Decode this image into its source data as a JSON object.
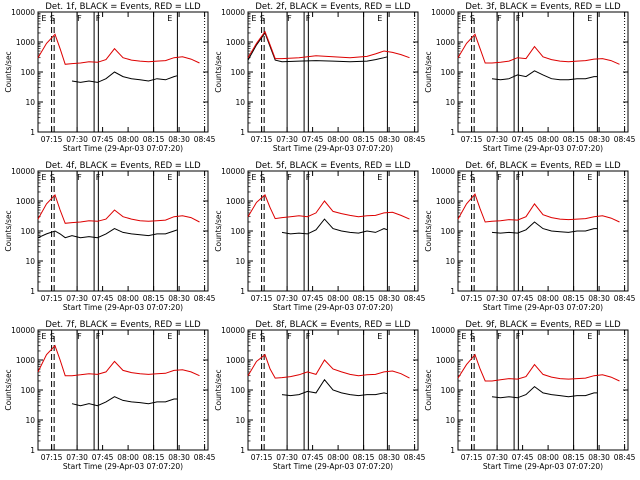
{
  "colors": {
    "events": "#000000",
    "lld": "#dd0000",
    "axis": "#000000",
    "background": "#ffffff"
  },
  "chart_data": [
    {
      "type": "line",
      "scale": "log",
      "title": "Det. 1f, BLACK = Events, RED = LLD",
      "xlabel": "Start Time (29-Apr-03 07:07:20)",
      "ylabel": "Counts/sec",
      "ylim": [
        1,
        10000
      ],
      "xticks": [
        "07:15",
        "07:30",
        "07:45",
        "08:00",
        "08:15",
        "08:30",
        "08:45"
      ],
      "yticks": [
        "1",
        "10",
        "100",
        "1000",
        "10000"
      ],
      "markers": [
        "E",
        "S",
        "F",
        "F",
        "E"
      ],
      "series": [
        {
          "name": "BLACK = Events",
          "x": [
            0,
            5,
            10,
            13,
            16,
            20,
            25,
            30,
            35,
            40,
            45,
            50,
            55,
            60,
            65,
            70,
            75,
            80,
            82
          ],
          "y": [
            null,
            null,
            null,
            null,
            null,
            50,
            45,
            50,
            45,
            60,
            100,
            70,
            60,
            55,
            50,
            60,
            55,
            70,
            75
          ]
        },
        {
          "name": "RED = LLD",
          "x": [
            0,
            5,
            10,
            13,
            16,
            20,
            25,
            30,
            35,
            40,
            45,
            50,
            55,
            60,
            65,
            70,
            75,
            80,
            85,
            90,
            95
          ],
          "y": [
            300,
            900,
            1800,
            600,
            180,
            190,
            200,
            220,
            210,
            260,
            600,
            300,
            250,
            230,
            220,
            230,
            240,
            300,
            320,
            270,
            200
          ]
        }
      ]
    },
    {
      "type": "line",
      "scale": "log",
      "title": "Det. 2f, BLACK = Events, RED = LLD",
      "xlabel": "Start Time (29-Apr-03 07:07:20)",
      "ylabel": "Counts/sec",
      "ylim": [
        1,
        10000
      ],
      "xticks": [
        "07:15",
        "07:30",
        "07:45",
        "08:00",
        "08:15",
        "08:30",
        "08:45"
      ],
      "yticks": [
        "1",
        "10",
        "100",
        "1000",
        "10000"
      ],
      "markers": [
        "E",
        "S",
        "F",
        "F",
        "E"
      ],
      "series": [
        {
          "name": "BLACK = Events",
          "x": [
            0,
            5,
            10,
            13,
            16,
            20,
            30,
            40,
            50,
            60,
            70,
            75,
            80,
            82
          ],
          "y": [
            250,
            800,
            2000,
            700,
            250,
            220,
            230,
            240,
            230,
            220,
            230,
            260,
            300,
            320
          ]
        },
        {
          "name": "RED = LLD",
          "x": [
            0,
            5,
            10,
            13,
            16,
            20,
            30,
            40,
            50,
            60,
            70,
            75,
            80,
            85,
            90,
            95
          ],
          "y": [
            300,
            900,
            2200,
            800,
            280,
            280,
            300,
            350,
            320,
            300,
            330,
            400,
            500,
            450,
            380,
            300
          ]
        }
      ]
    },
    {
      "type": "line",
      "scale": "log",
      "title": "Det. 3f, BLACK = Events, RED = LLD",
      "xlabel": "Start Time (29-Apr-03 07:07:20)",
      "ylabel": "Counts/sec",
      "ylim": [
        1,
        10000
      ],
      "xticks": [
        "07:15",
        "07:30",
        "07:45",
        "08:00",
        "08:15",
        "08:30",
        "08:45"
      ],
      "yticks": [
        "1",
        "10",
        "100",
        "1000",
        "10000"
      ],
      "markers": [
        "E",
        "S",
        "F",
        "F",
        "E"
      ],
      "series": [
        {
          "name": "BLACK = Events",
          "x": [
            0,
            5,
            10,
            13,
            16,
            20,
            25,
            30,
            35,
            40,
            45,
            50,
            55,
            60,
            65,
            70,
            75,
            80,
            82
          ],
          "y": [
            null,
            null,
            null,
            null,
            null,
            60,
            55,
            60,
            80,
            70,
            110,
            80,
            60,
            55,
            55,
            60,
            60,
            70,
            70
          ]
        },
        {
          "name": "RED = LLD",
          "x": [
            0,
            5,
            10,
            13,
            16,
            20,
            25,
            30,
            35,
            40,
            45,
            50,
            55,
            60,
            65,
            70,
            75,
            80,
            85,
            90,
            95
          ],
          "y": [
            300,
            900,
            1800,
            600,
            200,
            200,
            210,
            230,
            300,
            280,
            700,
            320,
            260,
            230,
            220,
            230,
            240,
            270,
            280,
            240,
            180
          ]
        }
      ]
    },
    {
      "type": "line",
      "scale": "log",
      "title": "Det. 4f, BLACK = Events, RED = LLD",
      "xlabel": "Start Time (29-Apr-03 07:07:20)",
      "ylabel": "Counts/sec",
      "ylim": [
        1,
        10000
      ],
      "xticks": [
        "07:15",
        "07:30",
        "07:45",
        "08:00",
        "08:15",
        "08:30",
        "08:45"
      ],
      "yticks": [
        "1",
        "10",
        "100",
        "1000",
        "10000"
      ],
      "markers": [
        "E",
        "S",
        "F",
        "F",
        "E"
      ],
      "series": [
        {
          "name": "BLACK = Events",
          "x": [
            0,
            5,
            10,
            13,
            16,
            20,
            25,
            30,
            35,
            40,
            45,
            50,
            55,
            60,
            65,
            70,
            75,
            80,
            82
          ],
          "y": [
            60,
            80,
            100,
            80,
            60,
            70,
            60,
            65,
            60,
            80,
            120,
            90,
            80,
            75,
            70,
            80,
            80,
            100,
            110
          ]
        },
        {
          "name": "RED = LLD",
          "x": [
            0,
            5,
            10,
            13,
            16,
            20,
            25,
            30,
            35,
            40,
            45,
            50,
            55,
            60,
            65,
            70,
            75,
            80,
            85,
            90,
            95
          ],
          "y": [
            250,
            800,
            1600,
            500,
            180,
            190,
            200,
            220,
            210,
            250,
            500,
            300,
            250,
            220,
            210,
            220,
            230,
            300,
            320,
            280,
            200
          ]
        }
      ]
    },
    {
      "type": "line",
      "scale": "log",
      "title": "Det. 5f, BLACK = Events, RED = LLD",
      "xlabel": "Start Time (29-Apr-03 07:07:20)",
      "ylabel": "Counts/sec",
      "ylim": [
        1,
        10000
      ],
      "xticks": [
        "07:15",
        "07:30",
        "07:45",
        "08:00",
        "08:15",
        "08:30",
        "08:45"
      ],
      "yticks": [
        "1",
        "10",
        "100",
        "1000",
        "10000"
      ],
      "markers": [
        "E",
        "S",
        "F",
        "F",
        "E"
      ],
      "series": [
        {
          "name": "BLACK = Events",
          "x": [
            0,
            5,
            10,
            13,
            16,
            20,
            25,
            30,
            35,
            40,
            45,
            50,
            55,
            60,
            65,
            70,
            75,
            80,
            82
          ],
          "y": [
            null,
            null,
            null,
            null,
            null,
            90,
            80,
            85,
            80,
            110,
            250,
            120,
            100,
            90,
            85,
            100,
            90,
            120,
            110
          ]
        },
        {
          "name": "RED = LLD",
          "x": [
            0,
            5,
            10,
            13,
            16,
            20,
            25,
            30,
            35,
            40,
            45,
            50,
            55,
            60,
            65,
            70,
            75,
            80,
            85,
            90,
            95
          ],
          "y": [
            300,
            900,
            1600,
            600,
            260,
            280,
            300,
            320,
            300,
            400,
            1000,
            450,
            380,
            330,
            300,
            320,
            330,
            400,
            420,
            330,
            250
          ]
        }
      ]
    },
    {
      "type": "line",
      "scale": "log",
      "title": "Det. 6f, BLACK = Events, RED = LLD",
      "xlabel": "Start Time (29-Apr-03 07:07:20)",
      "ylabel": "Counts/sec",
      "ylim": [
        1,
        10000
      ],
      "xticks": [
        "07:15",
        "07:30",
        "07:45",
        "08:00",
        "08:15",
        "08:30",
        "08:45"
      ],
      "yticks": [
        "1",
        "10",
        "100",
        "1000",
        "10000"
      ],
      "markers": [
        "E",
        "S",
        "F",
        "F",
        "E"
      ],
      "series": [
        {
          "name": "BLACK = Events",
          "x": [
            0,
            5,
            10,
            13,
            16,
            20,
            25,
            30,
            35,
            40,
            45,
            50,
            55,
            60,
            65,
            70,
            75,
            80,
            82
          ],
          "y": [
            null,
            null,
            null,
            null,
            null,
            90,
            85,
            90,
            85,
            110,
            200,
            120,
            100,
            95,
            90,
            100,
            100,
            120,
            120
          ]
        },
        {
          "name": "RED = LLD",
          "x": [
            0,
            5,
            10,
            13,
            16,
            20,
            25,
            30,
            35,
            40,
            45,
            50,
            55,
            60,
            65,
            70,
            75,
            80,
            85,
            90,
            95
          ],
          "y": [
            250,
            800,
            1700,
            550,
            200,
            210,
            220,
            240,
            230,
            300,
            800,
            350,
            280,
            250,
            240,
            250,
            260,
            300,
            320,
            270,
            200
          ]
        }
      ]
    },
    {
      "type": "line",
      "scale": "log",
      "title": "Det. 7f, BLACK = Events, RED = LLD",
      "xlabel": "Start Time (29-Apr-03 07:07:20)",
      "ylabel": "Counts/sec",
      "ylim": [
        1,
        10000
      ],
      "xticks": [
        "07:15",
        "07:30",
        "07:45",
        "08:00",
        "08:15",
        "08:30",
        "08:45"
      ],
      "yticks": [
        "1",
        "10",
        "100",
        "1000",
        "10000"
      ],
      "markers": [
        "E",
        "S",
        "F",
        "F",
        "E"
      ],
      "series": [
        {
          "name": "BLACK = Events",
          "x": [
            0,
            5,
            10,
            13,
            16,
            20,
            25,
            30,
            35,
            40,
            45,
            50,
            55,
            60,
            65,
            70,
            75,
            80,
            82
          ],
          "y": [
            null,
            null,
            null,
            null,
            null,
            35,
            30,
            35,
            30,
            40,
            60,
            45,
            40,
            38,
            35,
            40,
            40,
            50,
            50
          ]
        },
        {
          "name": "RED = LLD",
          "x": [
            0,
            5,
            10,
            13,
            16,
            20,
            25,
            30,
            35,
            40,
            45,
            50,
            55,
            60,
            65,
            70,
            75,
            80,
            85,
            90,
            95
          ],
          "y": [
            400,
            1500,
            3000,
            1000,
            300,
            300,
            320,
            350,
            330,
            400,
            900,
            450,
            380,
            350,
            330,
            350,
            360,
            450,
            470,
            400,
            300
          ]
        }
      ]
    },
    {
      "type": "line",
      "scale": "log",
      "title": "Det. 8f, BLACK = Events, RED = LLD",
      "xlabel": "Start Time (29-Apr-03 07:07:20)",
      "ylabel": "Counts/sec",
      "ylim": [
        1,
        10000
      ],
      "xticks": [
        "07:15",
        "07:30",
        "07:45",
        "08:00",
        "08:15",
        "08:30",
        "08:45"
      ],
      "yticks": [
        "1",
        "10",
        "100",
        "1000",
        "10000"
      ],
      "markers": [
        "E",
        "S",
        "F",
        "F",
        "E"
      ],
      "series": [
        {
          "name": "BLACK = Events",
          "x": [
            0,
            5,
            10,
            13,
            16,
            20,
            25,
            30,
            35,
            40,
            45,
            50,
            55,
            60,
            65,
            70,
            75,
            80,
            82
          ],
          "y": [
            null,
            null,
            null,
            null,
            null,
            70,
            65,
            70,
            90,
            80,
            220,
            100,
            80,
            70,
            65,
            70,
            70,
            80,
            75
          ]
        },
        {
          "name": "RED = LLD",
          "x": [
            0,
            5,
            10,
            13,
            16,
            20,
            25,
            30,
            35,
            40,
            45,
            50,
            55,
            60,
            65,
            70,
            75,
            80,
            85,
            90,
            95
          ],
          "y": [
            300,
            900,
            1500,
            500,
            250,
            260,
            280,
            320,
            400,
            330,
            1000,
            500,
            400,
            330,
            300,
            320,
            330,
            400,
            430,
            350,
            250
          ]
        }
      ]
    },
    {
      "type": "line",
      "scale": "log",
      "title": "Det. 9f, BLACK = Events, RED = LLD",
      "xlabel": "Start Time (29-Apr-03 07:07:20)",
      "ylabel": "Counts/sec",
      "ylim": [
        1,
        10000
      ],
      "xticks": [
        "07:15",
        "07:30",
        "07:45",
        "08:00",
        "08:15",
        "08:30",
        "08:45"
      ],
      "yticks": [
        "1",
        "10",
        "100",
        "1000",
        "10000"
      ],
      "markers": [
        "E",
        "S",
        "F",
        "F",
        "E"
      ],
      "series": [
        {
          "name": "BLACK = Events",
          "x": [
            0,
            5,
            10,
            13,
            16,
            20,
            25,
            30,
            35,
            40,
            45,
            50,
            55,
            60,
            65,
            70,
            75,
            80,
            82
          ],
          "y": [
            null,
            null,
            null,
            null,
            null,
            60,
            55,
            60,
            55,
            70,
            130,
            80,
            70,
            65,
            60,
            65,
            65,
            80,
            80
          ]
        },
        {
          "name": "RED = LLD",
          "x": [
            0,
            5,
            10,
            13,
            16,
            20,
            25,
            30,
            35,
            40,
            45,
            50,
            55,
            60,
            65,
            70,
            75,
            80,
            85,
            90,
            95
          ],
          "y": [
            250,
            700,
            1500,
            500,
            200,
            200,
            220,
            240,
            230,
            280,
            700,
            330,
            270,
            240,
            230,
            240,
            250,
            300,
            320,
            270,
            200
          ]
        }
      ]
    }
  ]
}
